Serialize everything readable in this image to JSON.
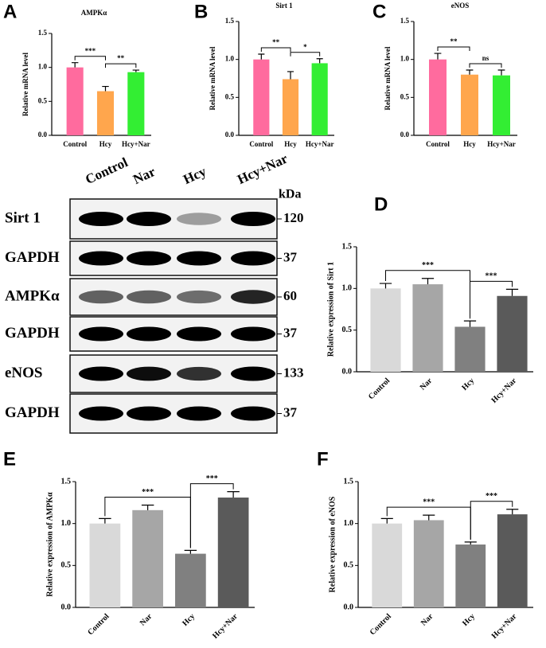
{
  "chart_data": [
    {
      "type": "bar",
      "panel": "A",
      "title": "AMPKα",
      "ylabel": "Relative mRNA level",
      "categories": [
        "Control",
        "Hcy",
        "Hcy+Nar"
      ],
      "values": [
        1.0,
        0.65,
        0.93
      ],
      "errors": [
        0.07,
        0.07,
        0.03
      ],
      "colors": [
        "#ff6b9e",
        "#ffa64d",
        "#33ee33"
      ],
      "ylim": [
        0,
        1.5
      ],
      "yticks": [
        {
          "value": 0,
          "label": "0.0"
        },
        0.5,
        {
          "value": 1,
          "label": "1.0"
        },
        1.5
      ],
      "comparisons": [
        {
          "pair": [
            "Control",
            "Hcy"
          ],
          "label": "***"
        },
        {
          "pair": [
            "Hcy",
            "Hcy+Nar"
          ],
          "label": "**"
        }
      ]
    },
    {
      "type": "bar",
      "panel": "B",
      "title": "Sirt 1",
      "ylabel": "Relative mRNA level",
      "categories": [
        "Control",
        "Hcy",
        "Hcy+Nar"
      ],
      "values": [
        1.0,
        0.74,
        0.95
      ],
      "errors": [
        0.07,
        0.1,
        0.06
      ],
      "colors": [
        "#ff6b9e",
        "#ffa64d",
        "#33ee33"
      ],
      "ylim": [
        0,
        1.5
      ],
      "yticks": [
        {
          "value": 0,
          "label": "0.0"
        },
        0.5,
        {
          "value": 1,
          "label": "1.0"
        },
        1.5
      ],
      "comparisons": [
        {
          "pair": [
            "Control",
            "Hcy"
          ],
          "label": "**"
        },
        {
          "pair": [
            "Hcy",
            "Hcy+Nar"
          ],
          "label": "*"
        }
      ]
    },
    {
      "type": "bar",
      "panel": "C",
      "title": "eNOS",
      "ylabel": "Relative mRNA level",
      "categories": [
        "Control",
        "Hcy",
        "Hcy+Nar"
      ],
      "values": [
        1.0,
        0.8,
        0.79
      ],
      "errors": [
        0.08,
        0.06,
        0.07
      ],
      "colors": [
        "#ff6b9e",
        "#ffa64d",
        "#33ee33"
      ],
      "ylim": [
        0,
        1.5
      ],
      "yticks": [
        {
          "value": 0,
          "label": "0.0"
        },
        0.5,
        {
          "value": 1,
          "label": "1.0"
        },
        1.5
      ],
      "comparisons": [
        {
          "pair": [
            "Control",
            "Hcy"
          ],
          "label": "**"
        },
        {
          "pair": [
            "Hcy",
            "Hcy+Nar"
          ],
          "label": "ns"
        }
      ]
    },
    {
      "type": "bar",
      "panel": "D",
      "ylabel": "Relative expression of Sirt 1",
      "categories": [
        "Control",
        "Nar",
        "Hcy",
        "Hcy+Nar"
      ],
      "values": [
        1.0,
        1.05,
        0.54,
        0.91
      ],
      "errors": [
        0.06,
        0.07,
        0.07,
        0.08
      ],
      "colors": [
        "#d9d9d9",
        "#a6a6a6",
        "#808080",
        "#5a5a5a"
      ],
      "ylim": [
        0,
        1.5
      ],
      "yticks": [
        {
          "value": 0,
          "label": "0.0"
        },
        0.5,
        {
          "value": 1,
          "label": "1.0"
        },
        1.5
      ],
      "comparisons": [
        {
          "pair": [
            "Control",
            "Hcy"
          ],
          "label": "***"
        },
        {
          "pair": [
            "Hcy",
            "Hcy+Nar"
          ],
          "label": "***"
        }
      ]
    },
    {
      "type": "bar",
      "panel": "E",
      "ylabel": "Relative expression of AMPKα",
      "categories": [
        "Control",
        "Nar",
        "Hcy",
        "Hcy+Nar"
      ],
      "values": [
        1.0,
        1.16,
        0.64,
        1.31
      ],
      "errors": [
        0.06,
        0.06,
        0.04,
        0.07
      ],
      "colors": [
        "#d9d9d9",
        "#a6a6a6",
        "#808080",
        "#5a5a5a"
      ],
      "ylim": [
        0,
        1.5
      ],
      "yticks": [
        {
          "value": 0,
          "label": "0.0"
        },
        0.5,
        {
          "value": 1,
          "label": "1.0"
        },
        1.5
      ],
      "comparisons": [
        {
          "pair": [
            "Control",
            "Hcy"
          ],
          "label": "***"
        },
        {
          "pair": [
            "Hcy",
            "Hcy+Nar"
          ],
          "label": "***"
        }
      ]
    },
    {
      "type": "bar",
      "panel": "F",
      "ylabel": "Relative expression of eNOS",
      "categories": [
        "Control",
        "Nar",
        "Hcy",
        "Hcy+Nar"
      ],
      "values": [
        1.0,
        1.04,
        0.75,
        1.11
      ],
      "errors": [
        0.06,
        0.06,
        0.03,
        0.06
      ],
      "colors": [
        "#d9d9d9",
        "#a6a6a6",
        "#808080",
        "#5a5a5a"
      ],
      "ylim": [
        0,
        1.5
      ],
      "yticks": [
        {
          "value": 0,
          "label": "0.0"
        },
        0.5,
        {
          "value": 1,
          "label": "1.0"
        },
        1.5
      ],
      "comparisons": [
        {
          "pair": [
            "Control",
            "Hcy"
          ],
          "label": "***"
        },
        {
          "pair": [
            "Hcy",
            "Hcy+Nar"
          ],
          "label": "***"
        }
      ]
    }
  ],
  "blot": {
    "lanes": [
      "Control",
      "Nar",
      "Hcy",
      "Hcy+Nar"
    ],
    "unit": "kDa",
    "rows": [
      {
        "label": "Sirt 1",
        "kda": 120
      },
      {
        "label": "GAPDH",
        "kda": 37
      },
      {
        "label": "AMPKα",
        "kda": 60
      },
      {
        "label": "GAPDH",
        "kda": 37
      },
      {
        "label": "eNOS",
        "kda": 133
      },
      {
        "label": "GAPDH",
        "kda": 37
      }
    ]
  }
}
